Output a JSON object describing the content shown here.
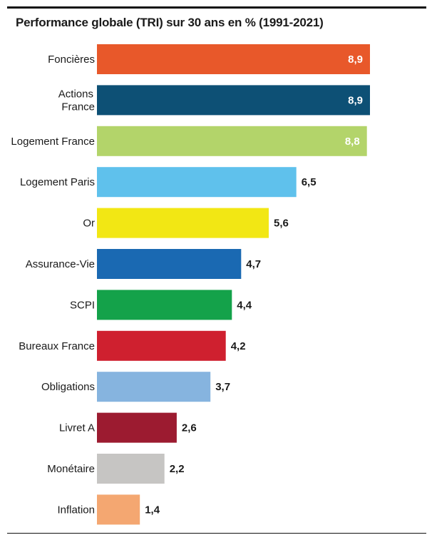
{
  "chart_data": {
    "type": "bar",
    "orientation": "horizontal",
    "title": "Performance globale (TRI) sur 30 ans en % (1991-2021)",
    "categories": [
      "Foncières",
      "Actions\nFrance",
      "Logement France",
      "Logement Paris",
      "Or",
      "Assurance-Vie",
      "SCPI",
      "Bureaux France",
      "Obligations",
      "Livret A",
      "Monétaire",
      "Inflation"
    ],
    "values": [
      8.9,
      8.9,
      8.8,
      6.5,
      5.6,
      4.7,
      4.4,
      4.2,
      3.7,
      2.6,
      2.2,
      1.4
    ],
    "value_labels": [
      "8,9",
      "8,9",
      "8,8",
      "6,5",
      "5,6",
      "4,7",
      "4,4",
      "4,2",
      "3,7",
      "2,6",
      "2,2",
      "1,4"
    ],
    "colors": [
      "#e8582a",
      "#0d5075",
      "#b3d46a",
      "#5fc1ec",
      "#f2e714",
      "#1a69b2",
      "#14a24a",
      "#cf202f",
      "#86b4df",
      "#9c1b30",
      "#c6c5c3",
      "#f4a771"
    ],
    "value_label_colors": {
      "inside": "#ffffff",
      "outside": "#1a1a1a"
    },
    "xlim": [
      0,
      9.3
    ],
    "grid": false,
    "legend": "none"
  }
}
